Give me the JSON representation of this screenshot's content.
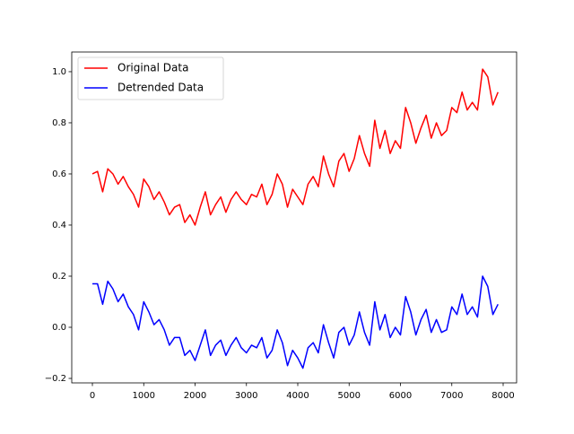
{
  "chart_data": {
    "type": "line",
    "x": [
      0,
      100,
      200,
      300,
      400,
      500,
      600,
      700,
      800,
      900,
      1000,
      1100,
      1200,
      1300,
      1400,
      1500,
      1600,
      1700,
      1800,
      1900,
      2000,
      2100,
      2200,
      2300,
      2400,
      2500,
      2600,
      2700,
      2800,
      2900,
      3000,
      3100,
      3200,
      3300,
      3400,
      3500,
      3600,
      3700,
      3800,
      3900,
      4000,
      4100,
      4200,
      4300,
      4400,
      4500,
      4600,
      4700,
      4800,
      4900,
      5000,
      5100,
      5200,
      5300,
      5400,
      5500,
      5600,
      5700,
      5800,
      5900,
      6000,
      6100,
      6200,
      6300,
      6400,
      6500,
      6600,
      6700,
      6800,
      6900,
      7000,
      7100,
      7200,
      7300,
      7400,
      7500,
      7600,
      7700,
      7800,
      7900
    ],
    "series": [
      {
        "name": "Original Data",
        "color": "#ff0000",
        "values": [
          0.6,
          0.61,
          0.53,
          0.62,
          0.6,
          0.56,
          0.59,
          0.55,
          0.52,
          0.47,
          0.58,
          0.55,
          0.5,
          0.53,
          0.49,
          0.44,
          0.47,
          0.48,
          0.41,
          0.44,
          0.4,
          0.47,
          0.53,
          0.44,
          0.48,
          0.51,
          0.45,
          0.5,
          0.53,
          0.5,
          0.48,
          0.52,
          0.51,
          0.56,
          0.48,
          0.52,
          0.6,
          0.56,
          0.47,
          0.54,
          0.51,
          0.48,
          0.56,
          0.59,
          0.55,
          0.67,
          0.6,
          0.55,
          0.65,
          0.68,
          0.61,
          0.66,
          0.75,
          0.68,
          0.63,
          0.81,
          0.7,
          0.77,
          0.68,
          0.73,
          0.7,
          0.86,
          0.8,
          0.72,
          0.78,
          0.83,
          0.74,
          0.8,
          0.75,
          0.77,
          0.86,
          0.84,
          0.92,
          0.85,
          0.88,
          0.85,
          1.01,
          0.98,
          0.87,
          0.92
        ]
      },
      {
        "name": "Detrended Data",
        "color": "#0000ff",
        "values": [
          0.17,
          0.17,
          0.09,
          0.18,
          0.15,
          0.1,
          0.13,
          0.08,
          0.05,
          -0.01,
          0.1,
          0.06,
          0.01,
          0.03,
          -0.01,
          -0.07,
          -0.04,
          -0.04,
          -0.11,
          -0.09,
          -0.13,
          -0.07,
          -0.01,
          -0.11,
          -0.07,
          -0.05,
          -0.11,
          -0.07,
          -0.04,
          -0.08,
          -0.1,
          -0.07,
          -0.08,
          -0.04,
          -0.12,
          -0.09,
          -0.01,
          -0.06,
          -0.15,
          -0.09,
          -0.12,
          -0.16,
          -0.08,
          -0.06,
          -0.1,
          0.01,
          -0.06,
          -0.12,
          -0.02,
          0.0,
          -0.07,
          -0.03,
          0.06,
          -0.02,
          -0.07,
          0.1,
          -0.01,
          0.05,
          -0.04,
          0.0,
          -0.03,
          0.12,
          0.06,
          -0.03,
          0.03,
          0.07,
          -0.02,
          0.03,
          -0.02,
          -0.01,
          0.08,
          0.05,
          0.13,
          0.05,
          0.08,
          0.04,
          0.2,
          0.16,
          0.05,
          0.09
        ]
      }
    ],
    "xlim": [
      -402,
      8262
    ],
    "ylim": [
      -0.2175,
      1.077
    ],
    "xticks": [
      0,
      1000,
      2000,
      3000,
      4000,
      5000,
      6000,
      7000,
      8000
    ],
    "yticks": [
      {
        "value": -0.2,
        "label": "−0.2"
      },
      {
        "value": 0,
        "label": "0.0"
      },
      0.2,
      0.4,
      0.6,
      0.8,
      {
        "value": 1,
        "label": "1.0"
      }
    ],
    "legend": "upper left",
    "grid": false
  }
}
